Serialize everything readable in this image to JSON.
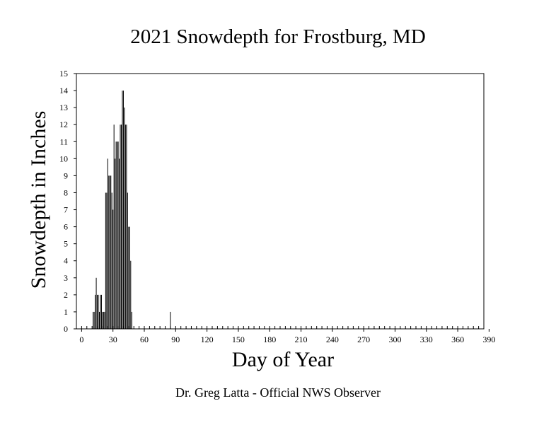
{
  "chart_data": {
    "type": "bar",
    "title": "2021 Snowdepth for Frostburg, MD",
    "xlabel": "Day of Year",
    "ylabel": "Snowdepth in Inches",
    "xlim": [
      -5,
      385
    ],
    "ylim": [
      0,
      15
    ],
    "xticks": [
      0,
      30,
      60,
      90,
      120,
      150,
      180,
      210,
      240,
      270,
      300,
      330,
      360,
      390
    ],
    "yticks": [
      0,
      1,
      2,
      3,
      4,
      5,
      6,
      7,
      8,
      9,
      10,
      11,
      12,
      13,
      14,
      15
    ],
    "grid": false,
    "legend": "none",
    "bar_color": "#000000",
    "x": [
      11,
      12,
      13,
      14,
      15,
      16,
      17,
      18,
      19,
      20,
      21,
      22,
      23,
      24,
      25,
      26,
      27,
      28,
      29,
      30,
      31,
      32,
      33,
      34,
      35,
      36,
      37,
      38,
      39,
      40,
      41,
      42,
      43,
      44,
      45,
      46,
      47,
      48,
      49,
      50,
      51,
      52,
      85
    ],
    "values": [
      1,
      1,
      2,
      3,
      2,
      2,
      1,
      2,
      2,
      1,
      1,
      1,
      8,
      8,
      10,
      9,
      9,
      9,
      8,
      7,
      12,
      10,
      11,
      11,
      11,
      10,
      12,
      12,
      14,
      14,
      13,
      12,
      12,
      8,
      6,
      6,
      4,
      1,
      0,
      0,
      0,
      0,
      1
    ]
  },
  "footer": {
    "note": "Dr. Greg Latta - Official NWS Observer"
  }
}
